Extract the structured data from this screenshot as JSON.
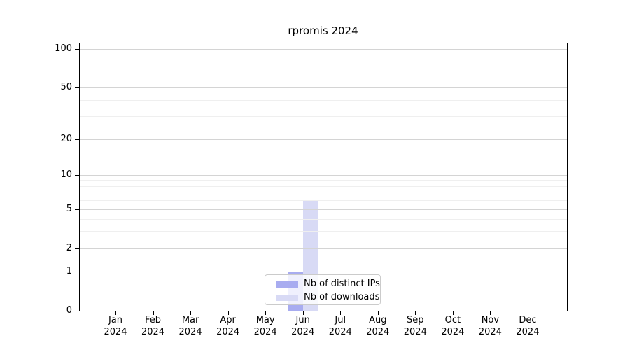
{
  "page": {
    "background": "#ffffff"
  },
  "chart_data": {
    "type": "bar",
    "title": "rpromis 2024",
    "categories": [
      {
        "month": "Jan",
        "year": "2024"
      },
      {
        "month": "Feb",
        "year": "2024"
      },
      {
        "month": "Mar",
        "year": "2024"
      },
      {
        "month": "Apr",
        "year": "2024"
      },
      {
        "month": "May",
        "year": "2024"
      },
      {
        "month": "Jun",
        "year": "2024"
      },
      {
        "month": "Jul",
        "year": "2024"
      },
      {
        "month": "Aug",
        "year": "2024"
      },
      {
        "month": "Sep",
        "year": "2024"
      },
      {
        "month": "Oct",
        "year": "2024"
      },
      {
        "month": "Nov",
        "year": "2024"
      },
      {
        "month": "Dec",
        "year": "2024"
      }
    ],
    "series": [
      {
        "key": "distinct_ips",
        "name": "Nb of distinct IPs",
        "color": "#a8acf0",
        "values": [
          0,
          0,
          0,
          0,
          0,
          1,
          0,
          0,
          0,
          0,
          0,
          0
        ]
      },
      {
        "key": "downloads",
        "name": "Nb of downloads",
        "color": "#d8daf5",
        "values": [
          0,
          0,
          0,
          0,
          0,
          6,
          0,
          0,
          0,
          0,
          0,
          0
        ]
      }
    ],
    "y_axis": {
      "scale": "log-like",
      "range": [
        0,
        100
      ],
      "major_ticks": [
        0,
        1,
        2,
        5,
        10,
        20,
        50,
        100
      ],
      "minor_ticks": [
        3,
        4,
        6,
        7,
        8,
        9,
        30,
        40,
        60,
        70,
        80,
        90
      ]
    },
    "x_axis": {
      "label_lines": 2
    },
    "legend": {
      "position": "inside-bottom-center"
    },
    "grid": true
  },
  "colors": {
    "major_grid": "#d4d4d4",
    "minor_grid": "#efefef",
    "spine": "#000000",
    "text": "#000000",
    "legend_border": "#cbcbcb",
    "legend_bg": "rgba(255,255,255,0.82)"
  }
}
